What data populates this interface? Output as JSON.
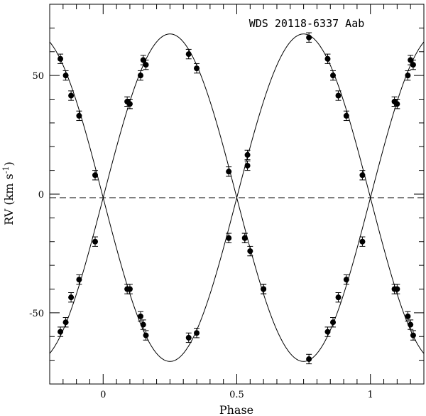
{
  "chart_data": {
    "type": "scatter",
    "title": "WDS 20118-6337 Aab",
    "xlabel": "Phase",
    "ylabel": "RV (km s",
    "ylabel_sup": "-1",
    "ylabel_close": ")",
    "xlim": [
      -0.2,
      1.2
    ],
    "ylim": [
      -80,
      80
    ],
    "x_ticks": [
      0,
      0.5,
      1
    ],
    "x_tick_labels": [
      "0",
      "0.5",
      "1"
    ],
    "y_ticks": [
      -50,
      0,
      50
    ],
    "y_tick_labels": [
      "-50",
      "0",
      "50"
    ],
    "grid": false,
    "systemic_velocity": -1.5,
    "model": {
      "gamma": -1.5,
      "K1": 69,
      "K2": 69,
      "peak_phase_primary": 0.25
    },
    "series": [
      {
        "marker": "filled-circle",
        "x": [
          -0.16,
          -0.14,
          -0.12,
          -0.09,
          -0.03,
          0.09,
          0.1,
          0.14,
          0.15,
          0.16,
          0.32,
          0.35,
          0.47,
          0.53,
          0.54,
          0.54,
          0.6,
          0.77,
          0.84,
          0.86,
          0.88,
          0.91,
          0.97,
          1.09,
          1.1,
          1.14,
          1.15,
          1.16
        ],
        "y": [
          57,
          50,
          41.5,
          33,
          8,
          39,
          38,
          50,
          56.5,
          54.5,
          59,
          53,
          9.5,
          -18.5,
          12,
          16.5,
          -40,
          66,
          57,
          50,
          41.5,
          33,
          8,
          39,
          38,
          50,
          56.5,
          54.5
        ],
        "error": 2
      },
      {
        "marker": "filled-circle",
        "x": [
          -0.16,
          -0.14,
          -0.12,
          -0.09,
          -0.03,
          0.09,
          0.1,
          0.14,
          0.15,
          0.16,
          0.32,
          0.35,
          0.47,
          0.53,
          0.55,
          0.6,
          0.77,
          0.84,
          0.86,
          0.88,
          0.91,
          0.97,
          1.09,
          1.1,
          1.14,
          1.15,
          1.16
        ],
        "y": [
          -58,
          -54,
          -43.5,
          -36,
          -20,
          -40,
          -40,
          -51.5,
          -55,
          -59.5,
          -60.5,
          -58.5,
          -18.5,
          -18.5,
          -24,
          -40,
          -69.5,
          -58,
          -54,
          -43.5,
          -36,
          -20,
          -40,
          -40,
          -51.5,
          -55,
          -59.5
        ],
        "error": 2
      }
    ]
  }
}
